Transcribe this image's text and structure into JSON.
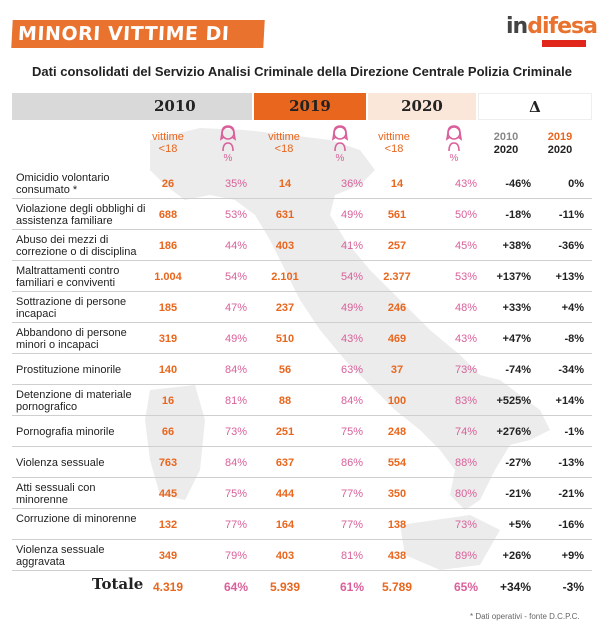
{
  "title": "MINORI VITTIME DI REATI IN ITALIA",
  "logo": {
    "brand_part1": "in",
    "brand_part2": "difesa"
  },
  "subtitle": "Dati consolidati del Servizio Analisi Criminale della Direzione Centrale Polizia Criminale",
  "headers": {
    "y2010": "2010",
    "y2019": "2019",
    "y2020": "2020",
    "delta": "Δ"
  },
  "subheaders": {
    "victims": "vittime",
    "under18": "<18",
    "pct": "%",
    "cmp1_top": "2010",
    "cmp1_bottom": "2020",
    "cmp2_top": "2019",
    "cmp2_bottom": "2020"
  },
  "rows": [
    {
      "label": "Omicidio volontario consumato *",
      "v2010": "26",
      "p2010": "35%",
      "v2019": "14",
      "p2019": "36%",
      "v2020": "14",
      "p2020": "43%",
      "d1": "-46%",
      "d2": "0%"
    },
    {
      "label": "Violazione degli obblighi di assistenza familiare",
      "v2010": "688",
      "p2010": "53%",
      "v2019": "631",
      "p2019": "49%",
      "v2020": "561",
      "p2020": "50%",
      "d1": "-18%",
      "d2": "-11%"
    },
    {
      "label": "Abuso dei mezzi di correzione o di disciplina",
      "v2010": "186",
      "p2010": "44%",
      "v2019": "403",
      "p2019": "41%",
      "v2020": "257",
      "p2020": "45%",
      "d1": "+38%",
      "d2": "-36%"
    },
    {
      "label": "Maltrattamenti contro familiari e conviventi",
      "v2010": "1.004",
      "p2010": "54%",
      "v2019": "2.101",
      "p2019": "54%",
      "v2020": "2.377",
      "p2020": "53%",
      "d1": "+137%",
      "d2": "+13%"
    },
    {
      "label": "Sottrazione di persone incapaci",
      "v2010": "185",
      "p2010": "47%",
      "v2019": "237",
      "p2019": "49%",
      "v2020": "246",
      "p2020": "48%",
      "d1": "+33%",
      "d2": "+4%"
    },
    {
      "label": "Abbandono di persone minori o incapaci",
      "v2010": "319",
      "p2010": "49%",
      "v2019": "510",
      "p2019": "43%",
      "v2020": "469",
      "p2020": "43%",
      "d1": "+47%",
      "d2": "-8%"
    },
    {
      "label": "Prostituzione minorile",
      "v2010": "140",
      "p2010": "84%",
      "v2019": "56",
      "p2019": "63%",
      "v2020": "37",
      "p2020": "73%",
      "d1": "-74%",
      "d2": "-34%"
    },
    {
      "label": "Detenzione di materiale pornografico",
      "v2010": "16",
      "p2010": "81%",
      "v2019": "88",
      "p2019": "84%",
      "v2020": "100",
      "p2020": "83%",
      "d1": "+525%",
      "d2": "+14%"
    },
    {
      "label": "Pornografia minorile",
      "v2010": "66",
      "p2010": "73%",
      "v2019": "251",
      "p2019": "75%",
      "v2020": "248",
      "p2020": "74%",
      "d1": "+276%",
      "d2": "-1%"
    },
    {
      "label": "Violenza sessuale",
      "v2010": "763",
      "p2010": "84%",
      "v2019": "637",
      "p2019": "86%",
      "v2020": "554",
      "p2020": "88%",
      "d1": "-27%",
      "d2": "-13%"
    },
    {
      "label": "Atti sessuali con minorenne",
      "v2010": "445",
      "p2010": "75%",
      "v2019": "444",
      "p2019": "77%",
      "v2020": "350",
      "p2020": "80%",
      "d1": "-21%",
      "d2": "-21%"
    },
    {
      "label": "Corruzione di minorenne",
      "v2010": "132",
      "p2010": "77%",
      "v2019": "164",
      "p2019": "77%",
      "v2020": "138",
      "p2020": "73%",
      "d1": "+5%",
      "d2": "-16%"
    },
    {
      "label": "Violenza sessuale aggravata",
      "v2010": "349",
      "p2010": "79%",
      "v2019": "403",
      "p2019": "81%",
      "v2020": "438",
      "p2020": "89%",
      "d1": "+26%",
      "d2": "+9%"
    }
  ],
  "total": {
    "label": "Totale",
    "v2010": "4.319",
    "p2010": "64%",
    "v2019": "5.939",
    "p2019": "61%",
    "v2020": "5.789",
    "p2020": "65%",
    "d1": "+34%",
    "d2": "-3%"
  },
  "footnote": "* Dati operativi - fonte D.C.P.C.",
  "colors": {
    "accent": "#e8661d",
    "pink": "#d9609a",
    "grey_header": "#d9d9d9",
    "light_header": "#fbe6da"
  }
}
